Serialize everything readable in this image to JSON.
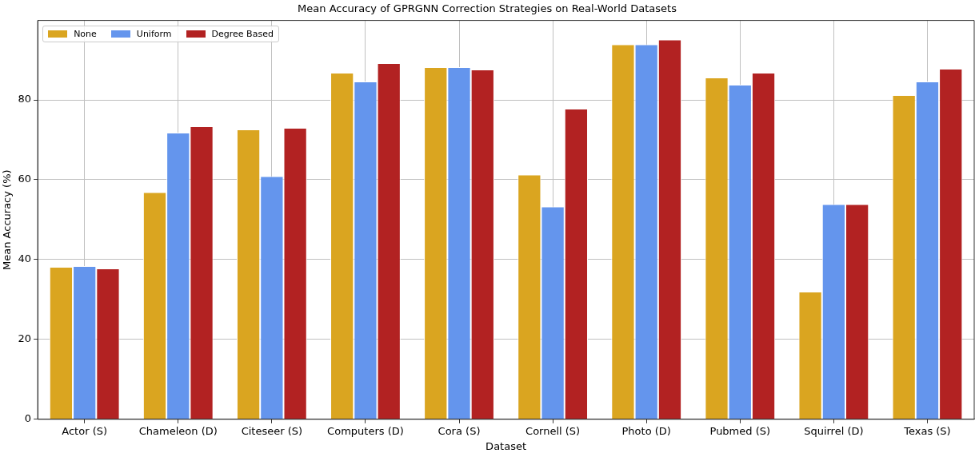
{
  "chart_data": {
    "type": "bar",
    "title": "Mean Accuracy of GPRGNN Correction Strategies on Real-World Datasets",
    "xlabel": "Dataset",
    "ylabel": "Mean Accuracy (%)",
    "categories": [
      "Actor (S)",
      "Chameleon (D)",
      "Citeseer (S)",
      "Computers (D)",
      "Cora (S)",
      "Cornell (S)",
      "Photo (D)",
      "Pubmed (S)",
      "Squirrel (D)",
      "Texas (S)"
    ],
    "series": [
      {
        "name": "None",
        "color": "#daa520",
        "values": [
          38.2,
          56.9,
          72.6,
          86.8,
          88.2,
          61.3,
          93.9,
          85.6,
          32.0,
          81.2
        ]
      },
      {
        "name": "Uniform",
        "color": "#6495ed",
        "values": [
          38.4,
          71.8,
          60.9,
          84.6,
          88.2,
          53.3,
          93.9,
          83.8,
          53.9,
          84.6
        ]
      },
      {
        "name": "Degree Based",
        "color": "#b22222",
        "values": [
          37.8,
          73.4,
          73.0,
          89.2,
          87.6,
          77.8,
          95.1,
          86.8,
          53.9,
          87.8
        ]
      }
    ],
    "ylim": [
      0,
      99.9
    ],
    "yticks": [
      0,
      20,
      40,
      60,
      80
    ],
    "grid": true,
    "legend": "top left"
  }
}
